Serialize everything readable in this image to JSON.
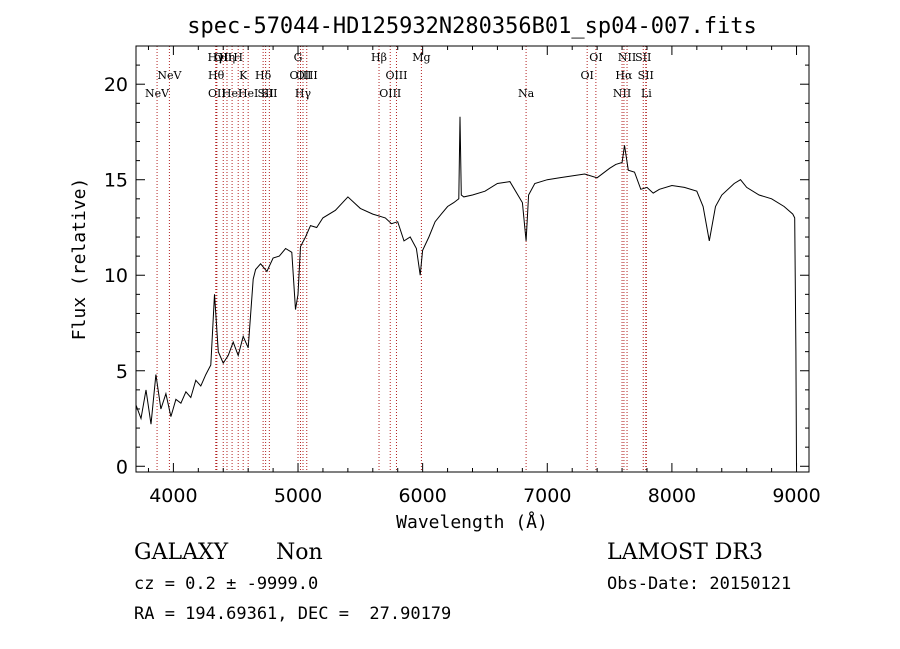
{
  "chart_data": {
    "type": "line",
    "title": "spec-57044-HD125932N280356B01_sp04-007.fits",
    "xlabel": "Wavelength (Å)",
    "ylabel": "Flux (relative)",
    "xlim": [
      3700,
      9100
    ],
    "ylim": [
      -0.3,
      22
    ],
    "xticks": [
      4000,
      5000,
      6000,
      7000,
      8000,
      9000
    ],
    "yticks": [
      0,
      5,
      10,
      15,
      20
    ],
    "grid": false,
    "series": [
      {
        "x": [
          3700,
          3740,
          3780,
          3820,
          3860,
          3900,
          3940,
          3980,
          4020,
          4060,
          4100,
          4140,
          4180,
          4220,
          4260,
          4300,
          4330,
          4360,
          4400,
          4440,
          4480,
          4520,
          4560,
          4600,
          4640,
          4660,
          4700,
          4750,
          4800,
          4850,
          4900,
          4950,
          4980,
          5000,
          5020,
          5060,
          5100,
          5150,
          5200,
          5300,
          5400,
          5500,
          5600,
          5700,
          5750,
          5800,
          5850,
          5900,
          5950,
          5980,
          6000,
          6050,
          6100,
          6150,
          6200,
          6250,
          6290,
          6300,
          6310,
          6330,
          6400,
          6500,
          6600,
          6700,
          6800,
          6830,
          6850,
          6900,
          7000,
          7100,
          7200,
          7300,
          7400,
          7500,
          7550,
          7600,
          7620,
          7650,
          7700,
          7750,
          7800,
          7850,
          7900,
          8000,
          8100,
          8200,
          8250,
          8300,
          8350,
          8400,
          8500,
          8550,
          8600,
          8700,
          8800,
          8900,
          8970,
          8985,
          8995,
          9000
        ],
        "y": [
          3.2,
          2.5,
          4.0,
          2.2,
          4.8,
          3.0,
          3.8,
          2.6,
          3.5,
          3.3,
          3.9,
          3.6,
          4.5,
          4.2,
          4.8,
          5.3,
          9.0,
          6.0,
          5.4,
          5.8,
          6.5,
          5.8,
          6.8,
          6.2,
          9.8,
          10.3,
          10.6,
          10.2,
          10.9,
          11.0,
          11.4,
          11.2,
          8.2,
          9.0,
          11.5,
          12.0,
          12.6,
          12.5,
          13.0,
          13.4,
          14.1,
          13.5,
          13.2,
          13.0,
          12.7,
          12.8,
          11.8,
          12.0,
          11.4,
          10.0,
          11.3,
          12.0,
          12.8,
          13.2,
          13.6,
          13.8,
          14.0,
          18.3,
          14.2,
          14.1,
          14.2,
          14.4,
          14.8,
          14.9,
          13.8,
          11.8,
          14.2,
          14.8,
          15.0,
          15.1,
          15.2,
          15.3,
          15.1,
          15.6,
          15.8,
          15.9,
          16.8,
          15.5,
          15.4,
          14.5,
          14.6,
          14.3,
          14.5,
          14.7,
          14.6,
          14.4,
          13.6,
          11.8,
          13.6,
          14.2,
          14.8,
          15.0,
          14.6,
          14.2,
          14.0,
          13.6,
          13.2,
          13.0,
          6.0,
          0.0
        ]
      }
    ],
    "lines": [
      {
        "x": 3869,
        "label": "NeV",
        "row": 2
      },
      {
        "x": 3968,
        "label": "NeV",
        "row": 1
      },
      {
        "x": 4340,
        "label": "Hγ",
        "row": 0
      },
      {
        "x": 4343,
        "label": "Hθ",
        "row": 1
      },
      {
        "x": 4349,
        "label": "OII",
        "row": 2
      },
      {
        "x": 4400,
        "label": "OII",
        "row": 0
      },
      {
        "x": 4430,
        "label": "Hη",
        "row": 0
      },
      {
        "x": 4471,
        "label": "HeI",
        "row": 2
      },
      {
        "x": 4520,
        "label": "H",
        "row": 0
      },
      {
        "x": 4560,
        "label": "K",
        "row": 1
      },
      {
        "x": 4600,
        "label": "HeI",
        "row": 2
      },
      {
        "x": 4720,
        "label": "Hδ",
        "row": 1
      },
      {
        "x": 4740,
        "label": "SII",
        "row": 2
      },
      {
        "x": 4770,
        "label": "SII",
        "row": 2
      },
      {
        "x": 5000,
        "label": "G",
        "row": 0
      },
      {
        "x": 5020,
        "label": "OIII",
        "row": 1
      },
      {
        "x": 5040,
        "label": "Hγ",
        "row": 2
      },
      {
        "x": 5070,
        "label": "OIII",
        "row": 1
      },
      {
        "x": 5650,
        "label": "Hβ",
        "row": 0
      },
      {
        "x": 5740,
        "label": "OIII",
        "row": 2
      },
      {
        "x": 5790,
        "label": "OIII",
        "row": 1
      },
      {
        "x": 5990,
        "label": "Mg",
        "row": 0
      },
      {
        "x": 6830,
        "label": "Na",
        "row": 2
      },
      {
        "x": 7320,
        "label": "OI",
        "row": 1
      },
      {
        "x": 7390,
        "label": "OI",
        "row": 0
      },
      {
        "x": 7600,
        "label": "NII",
        "row": 2
      },
      {
        "x": 7615,
        "label": "Hα",
        "row": 1
      },
      {
        "x": 7640,
        "label": "NII",
        "row": 0
      },
      {
        "x": 7770,
        "label": "SII",
        "row": 0
      },
      {
        "x": 7790,
        "label": "SII",
        "row": 1
      },
      {
        "x": 7795,
        "label": "Li",
        "row": 2
      }
    ]
  },
  "info": {
    "class_label": "GALAXY",
    "subclass": "Non",
    "survey": "LAMOST DR3",
    "cz": "cz = 0.2 ± -9999.0",
    "obs_date": "Obs-Date: 20150121",
    "coords": "RA = 194.69361, DEC =  27.90179"
  },
  "colors": {
    "line": "#000000",
    "marker": "#b22222",
    "axis": "#000000"
  }
}
